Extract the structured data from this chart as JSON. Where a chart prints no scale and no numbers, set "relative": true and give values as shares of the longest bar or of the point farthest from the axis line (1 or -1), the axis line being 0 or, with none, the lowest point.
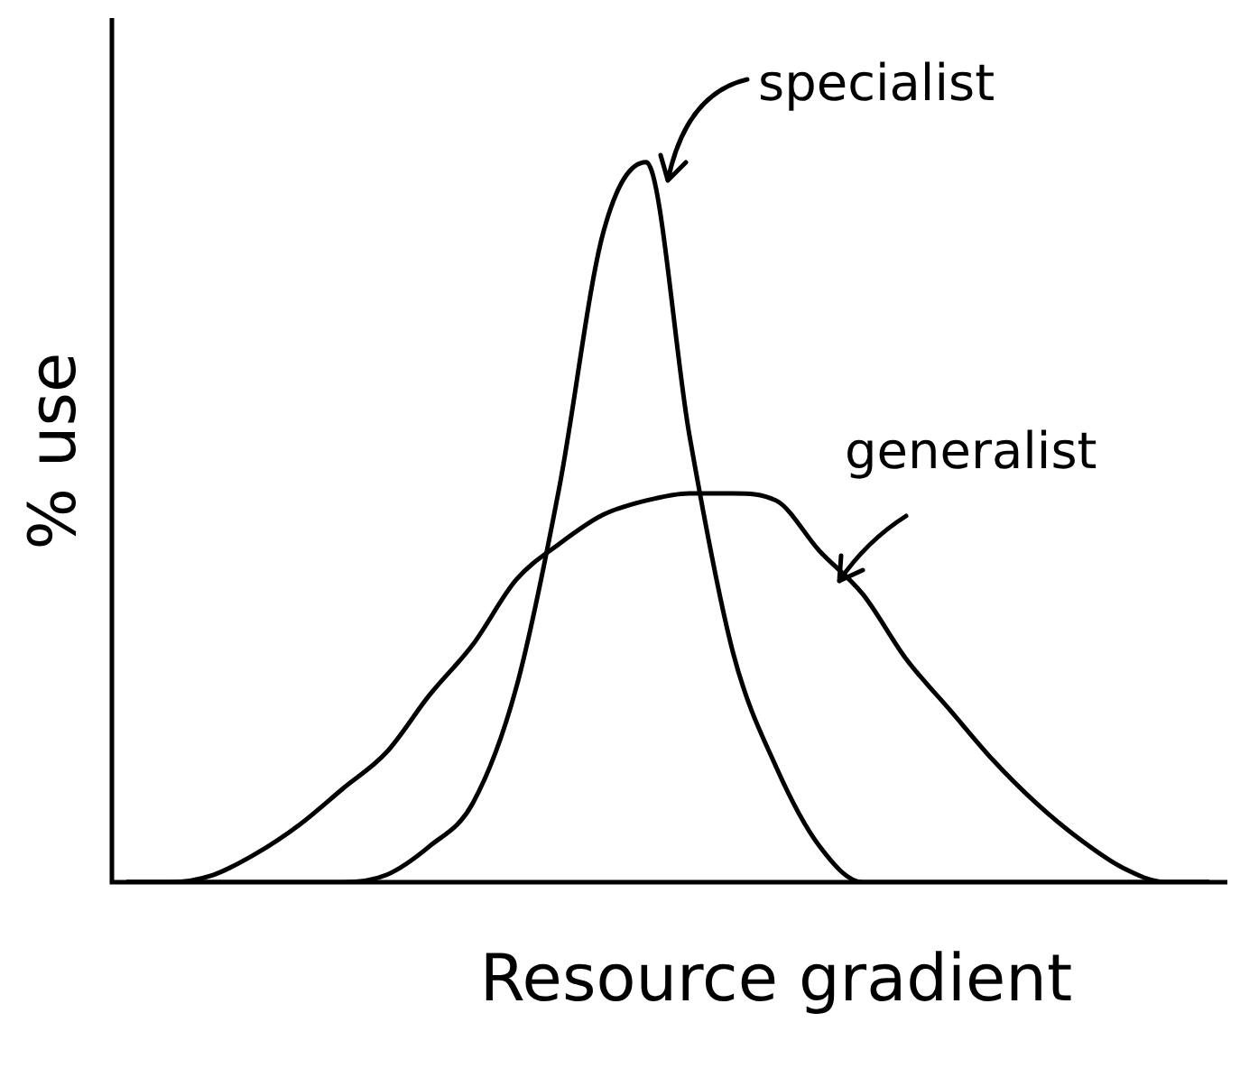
{
  "chart_data": {
    "type": "line",
    "relative": true,
    "xlabel": "Resource gradient",
    "ylabel": "% use",
    "legend": false,
    "marker": "none",
    "line_style": "solid",
    "categories": [
      null,
      null,
      null,
      null,
      null,
      null,
      null,
      null,
      null,
      null,
      null,
      null,
      null,
      null,
      null,
      null,
      null,
      null,
      null,
      null,
      null,
      null,
      null,
      null,
      null,
      null
    ],
    "series": [
      {
        "name": "specialist",
        "color": "#000000",
        "values": [
          0,
          0,
          0,
          0,
          0,
          0,
          0.01,
          0.05,
          0.11,
          0.27,
          0.55,
          0.9,
          1,
          0.62,
          0.32,
          0.16,
          0.05,
          0,
          0,
          0,
          0,
          0,
          0,
          0,
          0,
          0
        ]
      },
      {
        "name": "generalist",
        "color": "#000000",
        "values": [
          0,
          0,
          0.01,
          0.04,
          0.08,
          0.13,
          0.18,
          0.26,
          0.33,
          0.42,
          0.47,
          0.51,
          0.53,
          0.54,
          0.54,
          0.53,
          0.46,
          0.4,
          0.31,
          0.24,
          0.17,
          0.11,
          0.06,
          0.02,
          0,
          0
        ]
      }
    ]
  }
}
